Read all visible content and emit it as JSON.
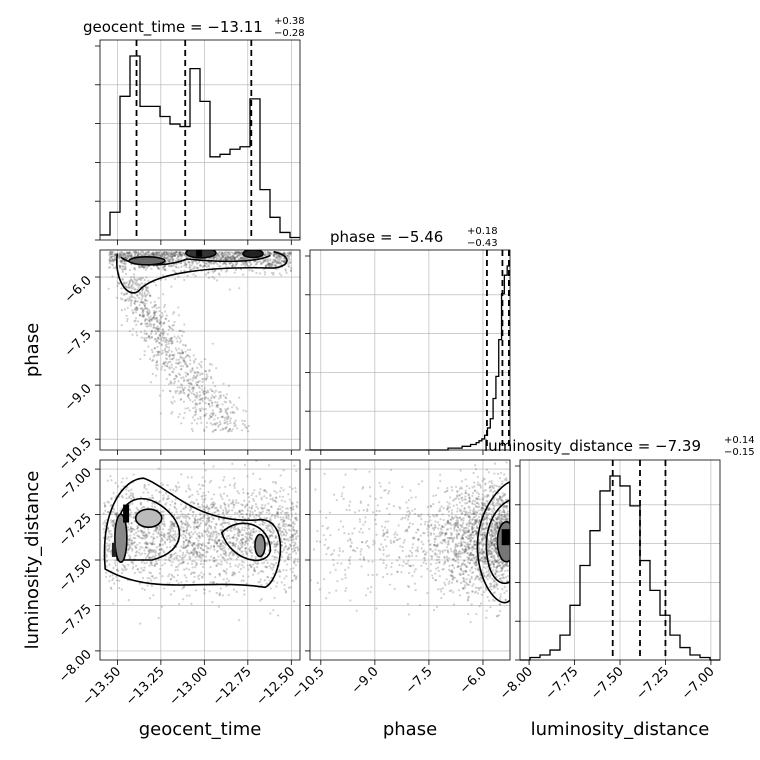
{
  "chart_data": {
    "type": "corner",
    "parameters": [
      "geocent_time",
      "phase",
      "luminosity_distance"
    ],
    "axis_labels": {
      "geocent_time": "geocent_time",
      "phase": "phase",
      "luminosity_distance": "luminosity_distance"
    },
    "ranges": {
      "geocent_time": [
        -13.6,
        -12.45
      ],
      "phase": [
        -10.8,
        -5.25
      ],
      "luminosity_distance": [
        -8.05,
        -6.95
      ]
    },
    "ticks": {
      "geocent_time": [
        -13.5,
        -13.25,
        -13.0,
        -12.75,
        -12.5
      ],
      "phase": [
        -10.5,
        -9.0,
        -7.5,
        -6.0
      ],
      "luminosity_distance": [
        -8.0,
        -7.75,
        -7.5,
        -7.25,
        -7.0
      ]
    },
    "tick_labels": {
      "geocent_time": [
        "−13.50",
        "−13.25",
        "−13.00",
        "−12.75",
        "−12.50"
      ],
      "phase": [
        "−10.5",
        "−9.0",
        "−7.5",
        "−6.0"
      ],
      "luminosity_distance": [
        "−8.00",
        "−7.75",
        "−7.50",
        "−7.25",
        "−7.00"
      ]
    },
    "titles": [
      {
        "param": "geocent_time",
        "label": "geocent_time = −13.11",
        "upper": "+0.38",
        "lower": "−0.28"
      },
      {
        "param": "phase",
        "label": "phase = −5.46",
        "upper": "+0.18",
        "lower": "−0.43"
      },
      {
        "param": "luminosity_distance",
        "label": "luminosity_distance = −7.39",
        "upper": "+0.14",
        "lower": "−0.15"
      }
    ],
    "histograms": {
      "geocent_time": {
        "edges_range": [
          -13.6,
          -12.45
        ],
        "counts": [
          2,
          11,
          57,
          73,
          53,
          53,
          49,
          46,
          45,
          68,
          55,
          33,
          34,
          36,
          37,
          56,
          20,
          9,
          3,
          1
        ]
      },
      "phase": {
        "edges_range": [
          -10.8,
          -5.25
        ],
        "counts": [
          0,
          0,
          0,
          0,
          0,
          0,
          0,
          0,
          0,
          0,
          0,
          0,
          0,
          0,
          0,
          0,
          0,
          0,
          0,
          0,
          0,
          0,
          0,
          0,
          0,
          0,
          0,
          0,
          0,
          0,
          0,
          0,
          0,
          0,
          0,
          0,
          0,
          0,
          0,
          0,
          0,
          0,
          0,
          0,
          0,
          0,
          0,
          0,
          0,
          1,
          1,
          1,
          1,
          1,
          2,
          2,
          2,
          3,
          3,
          4,
          5,
          6,
          8,
          12,
          17,
          28,
          40,
          60,
          85,
          95,
          100
        ]
      },
      "luminosity_distance": {
        "edges_range": [
          -8.05,
          -6.95
        ],
        "counts": [
          0,
          1,
          2,
          4,
          10,
          22,
          38,
          52,
          68,
          74,
          70,
          62,
          40,
          28,
          18,
          10,
          5,
          2,
          1,
          0
        ]
      }
    },
    "quantiles": {
      "geocent_time": [
        -13.39,
        -13.11,
        -12.73
      ],
      "phase": [
        -5.89,
        -5.46,
        -5.28
      ],
      "luminosity_distance": [
        -7.54,
        -7.39,
        -7.25
      ]
    },
    "pairs": [
      {
        "x": "geocent_time",
        "y": "phase"
      },
      {
        "x": "geocent_time",
        "y": "luminosity_distance"
      },
      {
        "x": "phase",
        "y": "luminosity_distance"
      }
    ],
    "grid": true
  }
}
